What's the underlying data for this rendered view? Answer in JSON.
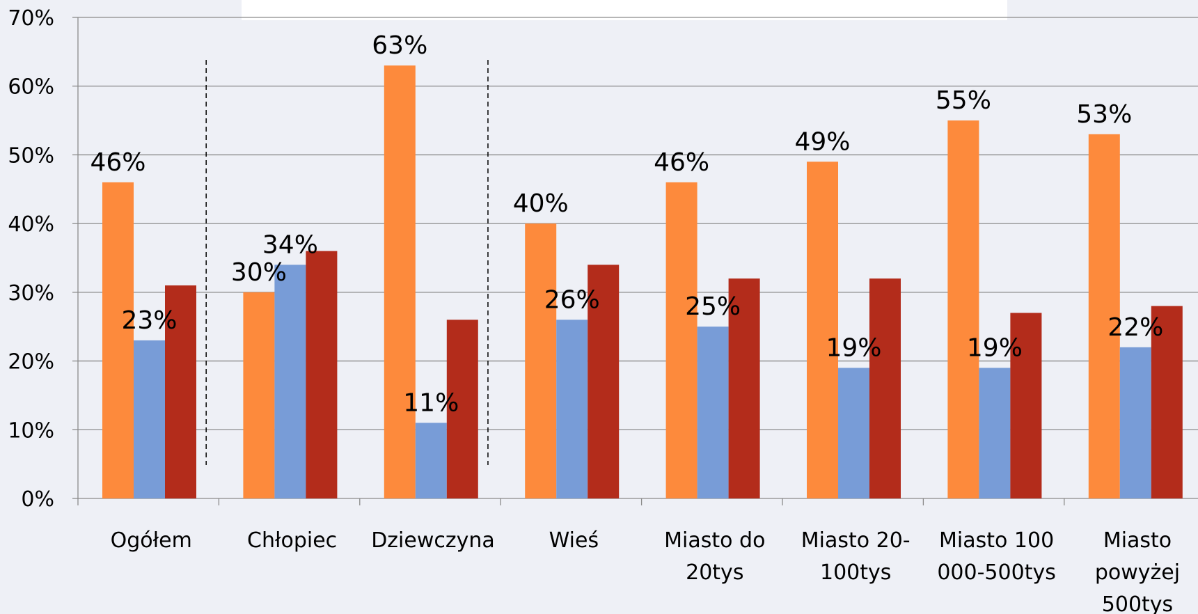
{
  "chart_data": {
    "type": "bar",
    "categories": [
      [
        "Ogółem"
      ],
      [
        "Chłopiec"
      ],
      [
        "Dziewczyna"
      ],
      [
        "Wieś"
      ],
      [
        "Miasto do",
        "20tys"
      ],
      [
        "Miasto 20-",
        "100tys"
      ],
      [
        "Miasto 100",
        "000-500tys"
      ],
      [
        "Miasto",
        "powyżej",
        "500tys"
      ]
    ],
    "series": [
      {
        "color": "#fd8a3c",
        "values": [
          46,
          30,
          63,
          40,
          46,
          49,
          55,
          53
        ],
        "labels": [
          "46%",
          "30%",
          "63%",
          "40%",
          "46%",
          "49%",
          "55%",
          "53%"
        ]
      },
      {
        "color": "#789cd7",
        "values": [
          23,
          34,
          11,
          26,
          25,
          19,
          19,
          22
        ],
        "labels": [
          "23%",
          "34%",
          "11%",
          "26%",
          "25%",
          "19%",
          "19%",
          "22%"
        ]
      },
      {
        "color": "#b32c1b",
        "values": [
          31,
          36,
          26,
          34,
          32,
          32,
          27,
          28
        ],
        "labels": []
      }
    ],
    "y_ticks": [
      "0%",
      "10%",
      "20%",
      "30%",
      "40%",
      "50%",
      "60%",
      "70%"
    ],
    "ylim": [
      0,
      70
    ],
    "grid": true,
    "group_separators_after": [
      0,
      2
    ],
    "title": "",
    "xlabel": "",
    "ylabel": ""
  },
  "colors": {
    "background": "#eef0f6",
    "gridline": "#8a8a8a",
    "text": "#000000"
  }
}
